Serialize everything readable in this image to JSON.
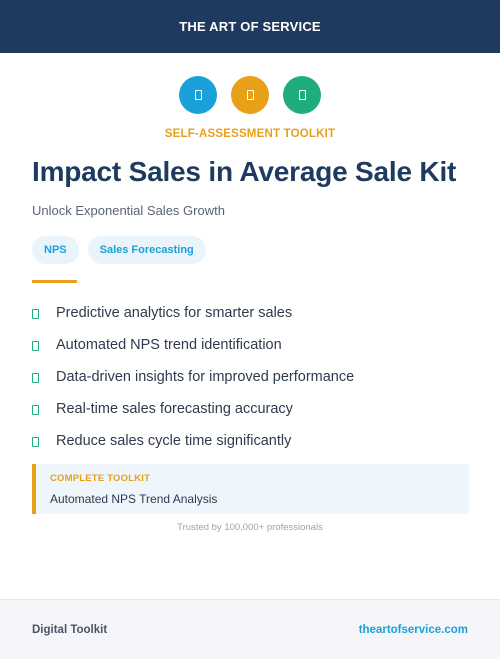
{
  "header": {
    "brand": "THE ART OF SERVICE"
  },
  "colors": {
    "navy": "#1e3a5f",
    "blue": "#1ba1d9",
    "orange": "#e8a019",
    "green": "#1fae7b"
  },
  "icons": [
    {
      "name": "document-icon",
      "color": "#1ba1d9"
    },
    {
      "name": "document-icon",
      "color": "#e8a019"
    },
    {
      "name": "document-icon",
      "color": "#1fae7b"
    }
  ],
  "kicker": "SELF-ASSESSMENT TOOLKIT",
  "title": "Impact Sales in Average Sale Kit",
  "subtitle": "Unlock Exponential Sales Growth",
  "tags": [
    "NPS",
    "Sales Forecasting"
  ],
  "benefits": [
    "Predictive analytics for smarter sales",
    "Automated NPS trend identification",
    "Data-driven insights for improved performance",
    "Real-time sales forecasting accuracy",
    "Reduce sales cycle time significantly"
  ],
  "callout": {
    "label": "COMPLETE TOOLKIT",
    "text": "Automated NPS Trend Analysis"
  },
  "trust": "Trusted by 100,000+ professionals",
  "footer": {
    "left": "Digital Toolkit",
    "right": "theartofservice.com"
  }
}
